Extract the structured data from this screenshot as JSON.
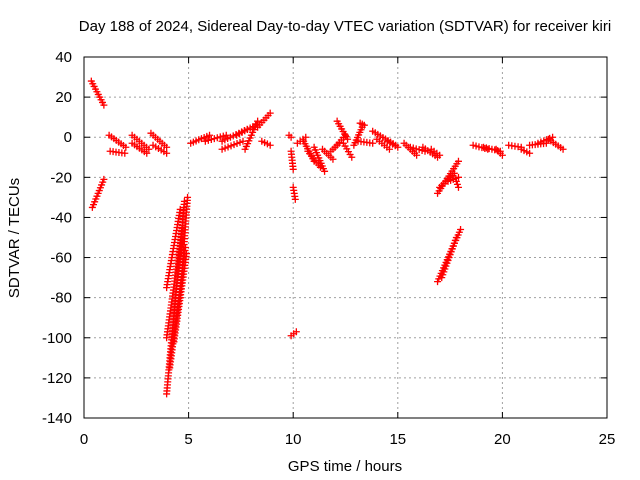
{
  "chart_data": {
    "type": "scatter",
    "title": "Day 188 of 2024, Sidereal Day-to-day VTEC variation (SDTVAR) for receiver kiri",
    "xlabel": "GPS time / hours",
    "ylabel": "SDTVAR / TECUs",
    "xlim": [
      0,
      25
    ],
    "ylim": [
      -140,
      40
    ],
    "x_ticks": [
      "0",
      "5",
      "10",
      "15",
      "20",
      "25"
    ],
    "y_ticks": [
      "40",
      "20",
      "0",
      "-20",
      "-40",
      "-60",
      "-80",
      "-100",
      "-120",
      "-140"
    ],
    "x_tick_values": [
      0,
      5,
      10,
      15,
      20,
      25
    ],
    "y_tick_values": [
      40,
      20,
      0,
      -20,
      -40,
      -60,
      -80,
      -100,
      -120,
      -140
    ],
    "grid": true,
    "marker": "plus",
    "color": "#ff0000",
    "segments": [
      {
        "x0": 0.35,
        "y0": 28,
        "x1": 0.95,
        "y1": 16
      },
      {
        "x0": 0.4,
        "y0": -35,
        "x1": 0.95,
        "y1": -21
      },
      {
        "x0": 1.2,
        "y0": 1,
        "x1": 2.0,
        "y1": -5
      },
      {
        "x0": 1.25,
        "y0": -7,
        "x1": 1.95,
        "y1": -8
      },
      {
        "x0": 2.3,
        "y0": 1,
        "x1": 3.1,
        "y1": -6
      },
      {
        "x0": 2.3,
        "y0": -3,
        "x1": 3.0,
        "y1": -8
      },
      {
        "x0": 3.2,
        "y0": 2,
        "x1": 3.95,
        "y1": -5
      },
      {
        "x0": 3.3,
        "y0": -4,
        "x1": 3.95,
        "y1": -8
      },
      {
        "x0": 3.95,
        "y0": -128,
        "x1": 4.8,
        "y1": -32
      },
      {
        "x0": 3.95,
        "y0": -100,
        "x1": 4.7,
        "y1": -45
      },
      {
        "x0": 3.95,
        "y0": -75,
        "x1": 4.6,
        "y1": -36
      },
      {
        "x0": 4.1,
        "y0": -115,
        "x1": 4.85,
        "y1": -55
      },
      {
        "x0": 4.3,
        "y0": -102,
        "x1": 4.9,
        "y1": -58
      },
      {
        "x0": 4.6,
        "y0": -80,
        "x1": 4.95,
        "y1": -30
      },
      {
        "x0": 5.1,
        "y0": -3,
        "x1": 6.0,
        "y1": 1
      },
      {
        "x0": 5.8,
        "y0": -2,
        "x1": 6.8,
        "y1": 1
      },
      {
        "x0": 6.6,
        "y0": -2,
        "x1": 7.8,
        "y1": 4
      },
      {
        "x0": 6.6,
        "y0": -6,
        "x1": 7.6,
        "y1": -2
      },
      {
        "x0": 7.7,
        "y0": -6,
        "x1": 8.3,
        "y1": 8
      },
      {
        "x0": 7.3,
        "y0": 1,
        "x1": 8.2,
        "y1": 6
      },
      {
        "x0": 8.3,
        "y0": 5,
        "x1": 8.9,
        "y1": 12
      },
      {
        "x0": 8.5,
        "y0": -2,
        "x1": 8.9,
        "y1": -4
      },
      {
        "x0": 9.8,
        "y0": 1,
        "x1": 9.9,
        "y1": 0
      },
      {
        "x0": 9.9,
        "y0": -7,
        "x1": 10.0,
        "y1": -16
      },
      {
        "x0": 10.0,
        "y0": -25,
        "x1": 10.1,
        "y1": -31
      },
      {
        "x0": 9.9,
        "y0": -99,
        "x1": 10.15,
        "y1": -97
      },
      {
        "x0": 10.2,
        "y0": -3,
        "x1": 10.6,
        "y1": 0
      },
      {
        "x0": 10.5,
        "y0": -2,
        "x1": 11.0,
        "y1": -12
      },
      {
        "x0": 10.7,
        "y0": -7,
        "x1": 11.3,
        "y1": -15
      },
      {
        "x0": 11.0,
        "y0": -5,
        "x1": 11.5,
        "y1": -17
      },
      {
        "x0": 11.4,
        "y0": -6,
        "x1": 11.9,
        "y1": -11
      },
      {
        "x0": 11.8,
        "y0": -7,
        "x1": 12.2,
        "y1": -3
      },
      {
        "x0": 12.0,
        "y0": -5,
        "x1": 12.5,
        "y1": 1
      },
      {
        "x0": 12.1,
        "y0": 8,
        "x1": 12.6,
        "y1": -1
      },
      {
        "x0": 12.4,
        "y0": -3,
        "x1": 12.8,
        "y1": -10
      },
      {
        "x0": 12.9,
        "y0": -4,
        "x1": 13.3,
        "y1": 5
      },
      {
        "x0": 13.2,
        "y0": 7,
        "x1": 13.4,
        "y1": 6
      },
      {
        "x0": 13.1,
        "y0": -2,
        "x1": 13.8,
        "y1": -3
      },
      {
        "x0": 13.8,
        "y0": 3,
        "x1": 14.9,
        "y1": -4
      },
      {
        "x0": 14.0,
        "y0": -1,
        "x1": 14.6,
        "y1": -6
      },
      {
        "x0": 14.5,
        "y0": -2,
        "x1": 15.0,
        "y1": -5
      },
      {
        "x0": 15.3,
        "y0": -3,
        "x1": 15.9,
        "y1": -9
      },
      {
        "x0": 15.6,
        "y0": -5,
        "x1": 16.3,
        "y1": -7
      },
      {
        "x0": 16.2,
        "y0": -5,
        "x1": 16.9,
        "y1": -10
      },
      {
        "x0": 16.6,
        "y0": -6,
        "x1": 17.0,
        "y1": -9
      },
      {
        "x0": 16.9,
        "y0": -28,
        "x1": 17.9,
        "y1": -12
      },
      {
        "x0": 17.0,
        "y0": -25,
        "x1": 17.7,
        "y1": -18
      },
      {
        "x0": 17.4,
        "y0": -22,
        "x1": 17.9,
        "y1": -20
      },
      {
        "x0": 17.8,
        "y0": -22,
        "x1": 17.9,
        "y1": -25
      },
      {
        "x0": 16.9,
        "y0": -72,
        "x1": 18.0,
        "y1": -46
      },
      {
        "x0": 17.1,
        "y0": -70,
        "x1": 17.8,
        "y1": -50
      },
      {
        "x0": 18.6,
        "y0": -4,
        "x1": 19.3,
        "y1": -6
      },
      {
        "x0": 19.1,
        "y0": -5,
        "x1": 19.9,
        "y1": -7
      },
      {
        "x0": 19.7,
        "y0": -6,
        "x1": 20.0,
        "y1": -9
      },
      {
        "x0": 20.3,
        "y0": -4,
        "x1": 20.9,
        "y1": -5
      },
      {
        "x0": 20.9,
        "y0": -6,
        "x1": 21.3,
        "y1": -8
      },
      {
        "x0": 21.3,
        "y0": -4,
        "x1": 22.1,
        "y1": -3
      },
      {
        "x0": 21.7,
        "y0": -3,
        "x1": 22.4,
        "y1": 0
      },
      {
        "x0": 22.2,
        "y0": -1,
        "x1": 22.9,
        "y1": -6
      }
    ]
  }
}
